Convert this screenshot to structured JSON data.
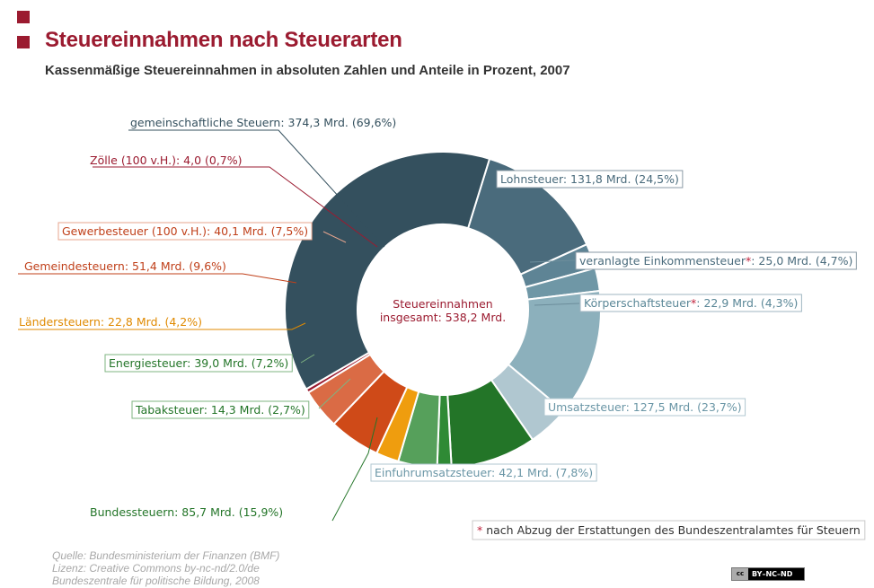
{
  "header": {
    "title": "Steuereinnahmen nach Steuerarten",
    "subtitle": "Kassenmäßige Steuereinnahmen in absoluten Zahlen und Anteile in Prozent, 2007"
  },
  "chart_data": {
    "type": "pie",
    "style": "donut",
    "center_label": [
      "Steuereinnahmen",
      "insgesamt: 538,2 Mrd."
    ],
    "unit": "Mrd.",
    "slices": [
      {
        "label": "Lohnsteuer: 131,8 Mrd. (24,5%)",
        "value": 131.8,
        "percent": 24.5,
        "color": "#4a6b7c",
        "label_color": "#4a6b7c",
        "border": "#8a9aa5"
      },
      {
        "label": "veranlagte Einkommensteuer",
        "star": true,
        "label_rest": ": 25,0 Mrd. (4,7%)",
        "value": 25.0,
        "percent": 4.7,
        "color": "#5e8495",
        "label_color": "#4a6b7c",
        "border": "#8a9aa5"
      },
      {
        "label": "Körperschaftsteuer",
        "star": true,
        "label_rest": ": 22,9 Mrd. (4,3%)",
        "value": 22.9,
        "percent": 4.3,
        "color": "#6f97a6",
        "label_color": "#5a8797",
        "border": "#9fb5c0"
      },
      {
        "label": "Umsatzsteuer: 127,5 Mrd. (23,7%)",
        "value": 127.5,
        "percent": 23.7,
        "color": "#8cb0bc",
        "label_color": "#6a96a6",
        "border": "#b1c7d0"
      },
      {
        "label": "Einfuhrumsatzsteuer: 42,1 Mrd. (7,8%)",
        "value": 42.1,
        "percent": 7.8,
        "color": "#b0c7d0",
        "label_color": "#6a96a6",
        "border": "#b1c7d0"
      },
      {
        "label": "Bundessteuern: 85,7 Mrd. (15,9%)",
        "value": 85.7,
        "percent": 15.9,
        "color": "#237528",
        "label_color": "#237528",
        "border": null
      },
      {
        "label": "Tabaksteuer: 14,3 Mrd. (2,7%)",
        "value": 14.3,
        "percent": 2.7,
        "color": "#2f8a35",
        "label_color": "#237528",
        "border": "#7fb482"
      },
      {
        "label": "Energiesteuer: 39,0 Mrd. (7,2%)",
        "value": 39.0,
        "percent": 7.2,
        "color": "#56a05b",
        "label_color": "#237528",
        "border": "#7fb482"
      },
      {
        "label": "Ländersteuern: 22,8 Mrd. (4,2%)",
        "value": 22.8,
        "percent": 4.2,
        "color": "#ef9d0e",
        "label_color": "#e08a00",
        "border": null
      },
      {
        "label": "Gemeindesteuern: 51,4 Mrd. (9,6%)",
        "value": 51.4,
        "percent": 9.6,
        "color": "#cf4a18",
        "label_color": "#c0401a",
        "border": null
      },
      {
        "label": "Gewerbesteuer (100 v.H.): 40,1 Mrd. (7,5%)",
        "value": 40.1,
        "percent": 7.5,
        "color": "#da6b45",
        "label_color": "#c0401a",
        "border": "#e7a58e"
      },
      {
        "label": "Zölle (100 v.H.): 4,0 (0,7%)",
        "value": 4.0,
        "percent": 0.7,
        "color": "#9b1b30",
        "label_color": "#9b1b30",
        "border": null
      },
      {
        "label": "gemeinschaftliche Steuern: 374,3 Mrd. (69,6%)",
        "value": 374.3,
        "percent": 69.6,
        "color": "#34505e",
        "label_color": "#34505e",
        "border": null
      }
    ],
    "footnote": {
      "star": "*",
      "text": " nach Abzug der Erstattungen des Bundeszentralamtes für Steuern"
    }
  },
  "source": [
    "Quelle: Bundesministerium der Finanzen (BMF)",
    "Lizenz: Creative Commons by-nc-nd/2.0/de",
    "Bundeszentrale für politische Bildung, 2008"
  ],
  "license_badge": {
    "icon": "cc",
    "text": "BY–NC–ND"
  }
}
